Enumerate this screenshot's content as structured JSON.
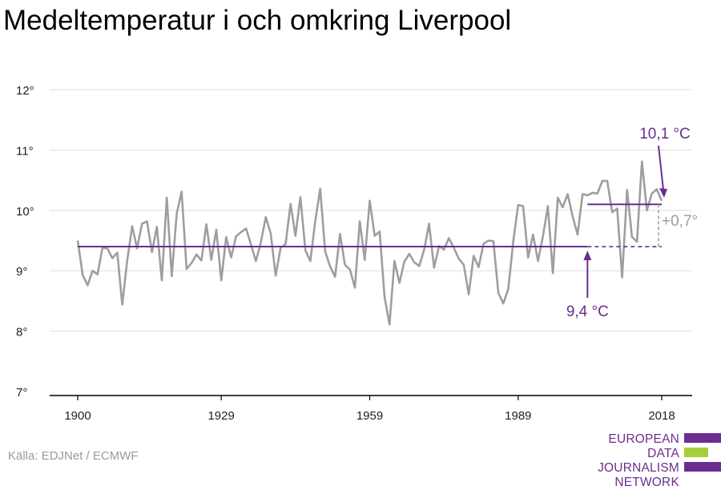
{
  "title": "Medeltemperatur i och omkring Liverpool",
  "source": "Källa: EDJNet / ECMWF",
  "logo": {
    "lines": [
      "EUROPEAN",
      "DATA JOURNALISM",
      "NETWORK"
    ],
    "colors": {
      "purple": "#6b2e8f",
      "green": "#a3cf3b"
    }
  },
  "chart_data": {
    "type": "line",
    "title": "Medeltemperatur i och omkring Liverpool",
    "xlabel": "",
    "ylabel": "",
    "xlim": [
      1900,
      2018
    ],
    "ylim": [
      7,
      12
    ],
    "x_ticks": [
      1900,
      1929,
      1959,
      1989,
      2018
    ],
    "y_ticks": [
      7,
      8,
      9,
      10,
      11,
      12
    ],
    "y_tick_labels": [
      "7°",
      "8°",
      "9°",
      "10°",
      "11°",
      "12°"
    ],
    "grid": true,
    "series": [
      {
        "color": "#9e9e9e",
        "x": [
          1900,
          1901,
          1902,
          1903,
          1904,
          1905,
          1906,
          1907,
          1908,
          1909,
          1910,
          1911,
          1912,
          1913,
          1914,
          1915,
          1916,
          1917,
          1918,
          1919,
          1920,
          1921,
          1922,
          1923,
          1924,
          1925,
          1926,
          1927,
          1928,
          1929,
          1930,
          1931,
          1932,
          1933,
          1934,
          1935,
          1936,
          1937,
          1938,
          1939,
          1940,
          1941,
          1942,
          1943,
          1944,
          1945,
          1946,
          1947,
          1948,
          1949,
          1950,
          1951,
          1952,
          1953,
          1954,
          1955,
          1956,
          1957,
          1958,
          1959,
          1960,
          1961,
          1962,
          1963,
          1964,
          1965,
          1966,
          1967,
          1968,
          1969,
          1970,
          1971,
          1972,
          1973,
          1974,
          1975,
          1976,
          1977,
          1978,
          1979,
          1980,
          1981,
          1982,
          1983,
          1984,
          1985,
          1986,
          1987,
          1988,
          1989,
          1990,
          1991,
          1992,
          1993,
          1994,
          1995,
          1996,
          1997,
          1998,
          1999,
          2000,
          2001,
          2002,
          2003,
          2004,
          2005,
          2006,
          2007,
          2008,
          2009,
          2010,
          2011,
          2012,
          2013,
          2014,
          2015,
          2016,
          2017,
          2018
        ],
        "y": [
          9.5,
          8.93,
          8.76,
          9.0,
          8.94,
          9.38,
          9.37,
          9.21,
          9.3,
          8.44,
          9.17,
          9.74,
          9.37,
          9.78,
          9.82,
          9.31,
          9.73,
          8.84,
          10.21,
          8.91,
          9.95,
          10.31,
          9.03,
          9.13,
          9.27,
          9.17,
          9.77,
          9.18,
          9.68,
          8.84,
          9.56,
          9.22,
          9.57,
          9.64,
          9.7,
          9.44,
          9.16,
          9.47,
          9.89,
          9.62,
          8.92,
          9.38,
          9.44,
          10.11,
          9.58,
          10.22,
          9.34,
          9.16,
          9.82,
          10.36,
          9.32,
          9.07,
          8.9,
          9.61,
          9.1,
          9.02,
          8.72,
          9.82,
          9.18,
          10.16,
          9.58,
          9.65,
          8.57,
          8.11,
          9.16,
          8.8,
          9.15,
          9.28,
          9.14,
          9.08,
          9.35,
          9.78,
          9.05,
          9.41,
          9.35,
          9.54,
          9.38,
          9.2,
          9.1,
          8.61,
          9.25,
          9.06,
          9.45,
          9.5,
          9.49,
          8.63,
          8.46,
          8.7,
          9.49,
          10.09,
          10.07,
          9.22,
          9.6,
          9.16,
          9.57,
          10.07,
          8.96,
          10.21,
          10.05,
          10.27,
          9.9,
          9.6,
          10.27,
          10.25,
          10.29,
          10.28,
          10.49,
          10.49,
          9.97,
          10.03,
          8.89,
          10.34,
          9.56,
          9.48,
          10.81,
          10.0,
          10.28,
          10.35,
          10.16
        ]
      }
    ],
    "reference_lines": [
      {
        "label": "9,4 °C",
        "value": 9.4,
        "from": 1900,
        "to": 2018
      },
      {
        "label": "10,1 °C",
        "value": 10.1,
        "from": 2003,
        "to": 2018
      }
    ],
    "difference_label": "+0,7°",
    "colors": {
      "accent": "#6b2e8f",
      "line": "#9e9e9e",
      "grid": "#dddddd",
      "axis": "#000000"
    }
  }
}
